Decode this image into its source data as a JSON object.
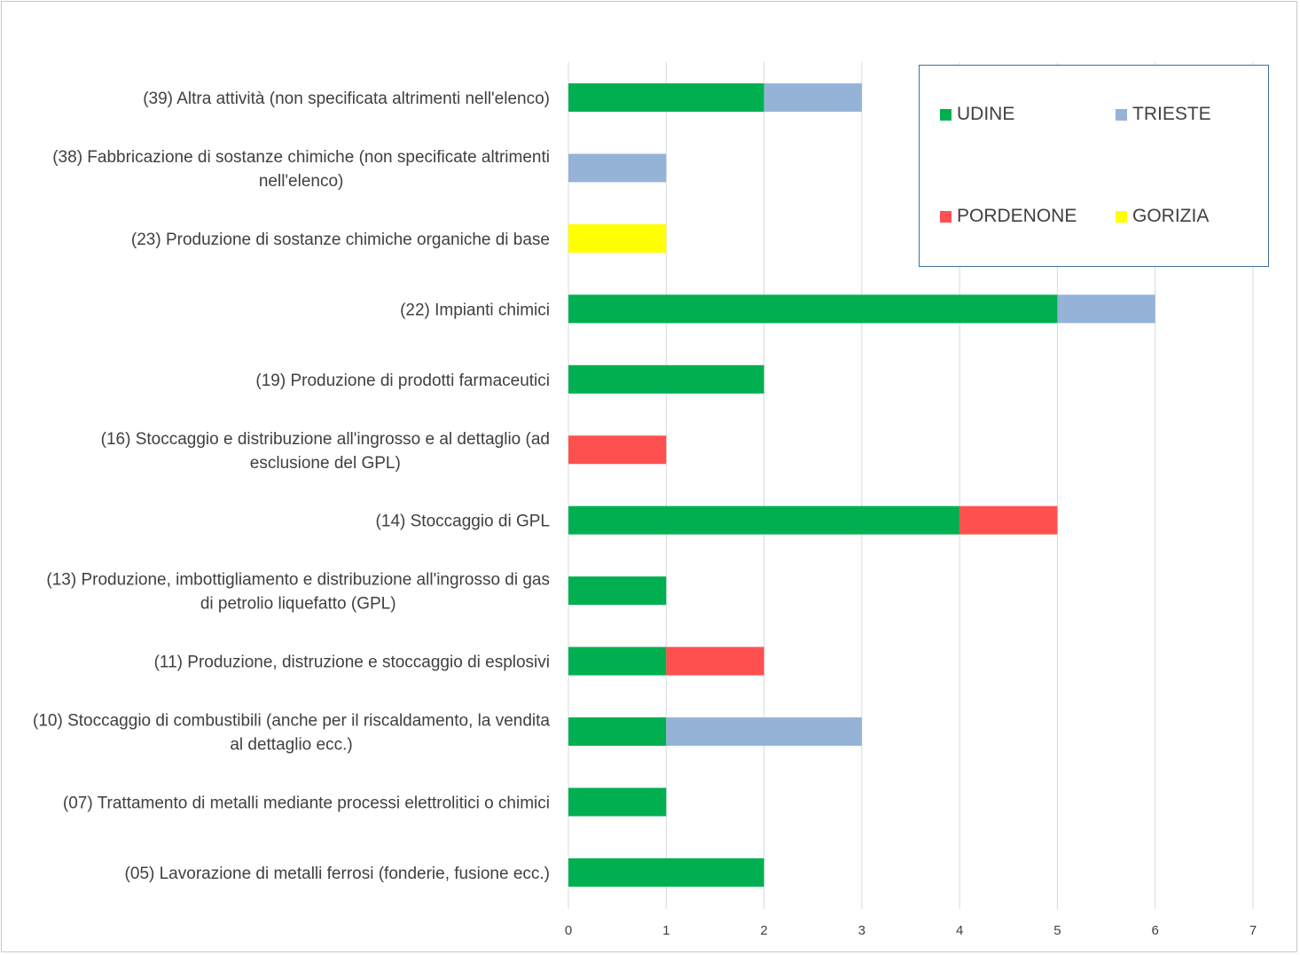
{
  "chart_data": {
    "type": "bar",
    "orientation": "horizontal",
    "stacked": true,
    "categories": [
      "(39) Altra attività  (non specificata altrimenti nell'elenco)",
      "(38) Fabbricazione di sostanze chimiche (non specificate altrimenti nell'elenco)",
      "(23) Produzione di sostanze chimiche organiche di base",
      "(22) Impianti chimici",
      "(19) Produzione di prodotti farmaceutici",
      "(16) Stoccaggio e distribuzione all'ingrosso e al dettaglio (ad esclusione del GPL)",
      "(14) Stoccaggio di GPL",
      "(13) Produzione, imbottigliamento e distribuzione all'ingrosso di gas di petrolio liquefatto (GPL)",
      "(11) Produzione, distruzione e stoccaggio di esplosivi",
      "(10) Stoccaggio di combustibili (anche per il riscaldamento, la vendita al dettaglio ecc.)",
      "(07) Trattamento di metalli mediante processi elettrolitici o chimici",
      "(05) Lavorazione di metalli ferrosi (fonderie, fusione ecc.)"
    ],
    "category_lines": [
      [
        "(39) Altra attività  (non specificata altrimenti nell'elenco)"
      ],
      [
        "(38) Fabbricazione di sostanze chimiche (non specificate altrimenti",
        "nell'elenco)"
      ],
      [
        "(23) Produzione di sostanze chimiche organiche di base"
      ],
      [
        "(22) Impianti chimici"
      ],
      [
        "(19) Produzione di prodotti farmaceutici"
      ],
      [
        "(16) Stoccaggio e distribuzione all'ingrosso e al dettaglio (ad",
        "esclusione del GPL)"
      ],
      [
        "(14) Stoccaggio di GPL"
      ],
      [
        "(13) Produzione, imbottigliamento e distribuzione all'ingrosso di gas",
        "di petrolio liquefatto (GPL)"
      ],
      [
        "(11) Produzione, distruzione e stoccaggio di esplosivi"
      ],
      [
        "(10) Stoccaggio di combustibili (anche per il riscaldamento, la vendita",
        "al dettaglio ecc.)"
      ],
      [
        "(07) Trattamento di metalli mediante processi elettrolitici o chimici"
      ],
      [
        "(05) Lavorazione di metalli ferrosi (fonderie, fusione ecc.)"
      ]
    ],
    "series": [
      {
        "name": "UDINE",
        "color": "#00b050",
        "values": [
          2,
          0,
          0,
          5,
          2,
          0,
          4,
          1,
          1,
          1,
          1,
          2
        ]
      },
      {
        "name": "TRIESTE",
        "color": "#95b3d7",
        "values": [
          1,
          1,
          0,
          1,
          0,
          0,
          0,
          0,
          0,
          2,
          0,
          0
        ]
      },
      {
        "name": "PORDENONE",
        "color": "#ff5050",
        "values": [
          0,
          0,
          0,
          0,
          0,
          1,
          1,
          0,
          1,
          0,
          0,
          0
        ]
      },
      {
        "name": "GORIZIA",
        "color": "#ffff00",
        "values": [
          0,
          0,
          1,
          0,
          0,
          0,
          0,
          0,
          0,
          0,
          0,
          0
        ]
      }
    ],
    "xlim": [
      0,
      7
    ],
    "xticks": [
      "0",
      "1",
      "2",
      "3",
      "4",
      "5",
      "6",
      "7"
    ],
    "grid": "vertical",
    "legend_position": "top-right"
  }
}
